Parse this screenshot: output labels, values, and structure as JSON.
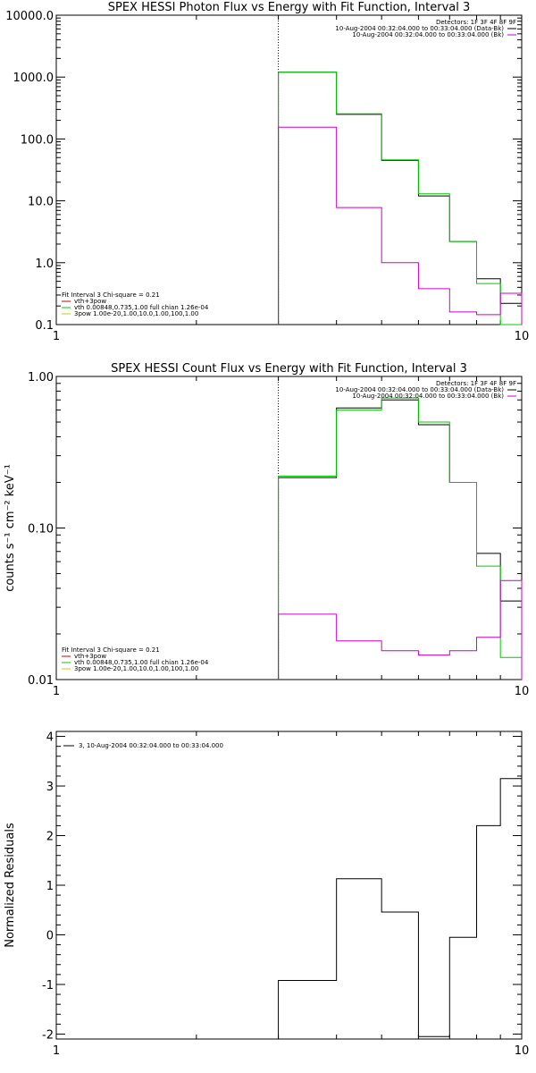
{
  "chart_data": [
    {
      "type": "line",
      "title": "SPEX HESSI Photon Flux vs Energy with Fit Function, Interval 3",
      "xscale": "log",
      "yscale": "log",
      "xlim": [
        1,
        10
      ],
      "ylim": [
        0.1,
        10000
      ],
      "xticks": [
        {
          "v": 1,
          "label": "1"
        },
        {
          "v": 10,
          "label": "10"
        }
      ],
      "yticks": [
        {
          "v": 0.1,
          "label": "0.1"
        },
        {
          "v": 1,
          "label": "1.0"
        },
        {
          "v": 10,
          "label": "10.0"
        },
        {
          "v": 100,
          "label": "100.0"
        },
        {
          "v": 1000,
          "label": "1000.0"
        },
        {
          "v": 10000,
          "label": "10000.0"
        }
      ],
      "detector_line": {
        "x": 3,
        "label": ""
      },
      "legend_top": {
        "lines": [
          "Detectors: 1F 3F 4F 8F 9F",
          "10-Aug-2004 00:32:04.000 to 00:33:04.000 (Data-Bk)",
          "10-Aug-2004 00:32:04.000 to 00:33:04.000 (Bk)"
        ],
        "colors": [
          "",
          "#000000",
          "#cc00cc"
        ]
      },
      "legend_bottom": {
        "lines": [
          "Fit Interval 3   Chi-square = 0.21",
          "vth+3pow",
          "vth 0.00848,0.735,1.00  full chian 1.26e-04",
          "3pow 1.00e-20,1.00,10.0,1.00,100,1.00"
        ],
        "colors": [
          "",
          "#cc0000",
          "#00cc00",
          "#cccc00"
        ]
      },
      "edges": [
        3,
        4,
        5,
        6,
        7,
        8,
        9,
        10
      ],
      "series": [
        {
          "color": "#000000",
          "values": [
            1200,
            250,
            45,
            12,
            2.2,
            0.55,
            0.22
          ]
        },
        {
          "color": "#00cc00",
          "values": [
            1200,
            255,
            46,
            13,
            2.2,
            0.46,
            0.09
          ]
        },
        {
          "color": "#cc00cc",
          "values": [
            155,
            7.8,
            1.0,
            0.38,
            0.16,
            0.145,
            0.32
          ]
        }
      ]
    },
    {
      "type": "line",
      "title": "SPEX HESSI Count Flux vs Energy with Fit Function, Interval 3",
      "ylabel": "counts s⁻¹ cm⁻² keV⁻¹",
      "xscale": "log",
      "yscale": "log",
      "xlim": [
        1,
        10
      ],
      "ylim": [
        0.01,
        1.0
      ],
      "xticks": [
        {
          "v": 1,
          "label": "1"
        },
        {
          "v": 10,
          "label": "10"
        }
      ],
      "yticks": [
        {
          "v": 0.01,
          "label": "0.01"
        },
        {
          "v": 0.1,
          "label": "0.10"
        },
        {
          "v": 1,
          "label": "1.00"
        }
      ],
      "detector_line": {
        "x": 3,
        "label": ""
      },
      "legend_top": {
        "lines": [
          "Detectors: 1F 3F 4F 8F 9F",
          "10-Aug-2004 00:32:04.000 to 00:33:04.000 (Data-Bk)",
          "10-Aug-2004 00:32:04.000 to 00:33:04.000 (Bk)"
        ],
        "colors": [
          "",
          "#000000",
          "#cc00cc"
        ]
      },
      "legend_bottom": {
        "lines": [
          "Fit Interval 3   Chi-square = 0.21",
          "vth+3pow",
          "vth 0.00848,0.735,1.00  full chian 1.26e-04",
          "3pow 1.00e-20,1.00,10.0,1.00,100,1.00"
        ],
        "colors": [
          "",
          "#cc0000",
          "#00cc00",
          "#cccc00"
        ]
      },
      "edges": [
        3,
        4,
        5,
        6,
        7,
        8,
        9,
        10
      ],
      "series": [
        {
          "color": "#000000",
          "values": [
            0.215,
            0.62,
            0.7,
            0.48,
            0.2,
            0.068,
            0.033
          ]
        },
        {
          "color": "#00cc00",
          "values": [
            0.22,
            0.6,
            0.72,
            0.5,
            0.2,
            0.056,
            0.014
          ]
        },
        {
          "color": "#cc00cc",
          "values": [
            0.027,
            0.018,
            0.0155,
            0.0145,
            0.0155,
            0.019,
            0.045
          ]
        }
      ]
    },
    {
      "type": "line",
      "ylabel": "Normalized  Residuals",
      "xscale": "log",
      "yscale": "linear",
      "xlim": [
        1,
        10
      ],
      "ylim": [
        -2.1,
        4.1
      ],
      "xticks": [
        {
          "v": 1,
          "label": "1"
        },
        {
          "v": 10,
          "label": "10"
        }
      ],
      "yticks": [
        {
          "v": -2,
          "label": "-2"
        },
        {
          "v": -1,
          "label": "-1"
        },
        {
          "v": 0,
          "label": "0"
        },
        {
          "v": 1,
          "label": "1"
        },
        {
          "v": 2,
          "label": "2"
        },
        {
          "v": 3,
          "label": "3"
        },
        {
          "v": 4,
          "label": "4"
        }
      ],
      "legend_top_left": {
        "lines": [
          "3, 10-Aug-2004 00:32:04.000 to 00:33:04.000"
        ],
        "colors": [
          "#000000"
        ]
      },
      "edges": [
        3,
        4,
        5,
        6,
        7,
        8,
        9,
        10
      ],
      "series": [
        {
          "color": "#000000",
          "values": [
            -0.92,
            1.13,
            0.46,
            -2.05,
            -0.05,
            2.2,
            3.15
          ]
        }
      ]
    }
  ]
}
